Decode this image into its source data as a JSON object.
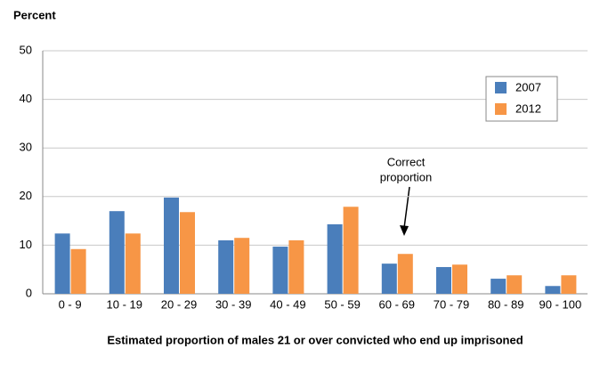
{
  "chart_data": {
    "type": "bar",
    "y_axis_label": "Percent",
    "x_axis_label": "Estimated proportion of males 21 or over convicted who end up imprisoned",
    "categories": [
      "0 - 9",
      "10 - 19",
      "20 - 29",
      "30 - 39",
      "40 - 49",
      "50 - 59",
      "60 - 69",
      "70 - 79",
      "80 - 89",
      "90 - 100"
    ],
    "series": [
      {
        "name": "2007",
        "color": "#4a7ebb",
        "values": [
          12.4,
          17.0,
          19.8,
          11.0,
          9.7,
          14.3,
          6.2,
          5.5,
          3.1,
          1.6
        ]
      },
      {
        "name": "2012",
        "color": "#f79646",
        "values": [
          9.2,
          12.4,
          16.8,
          11.5,
          11.0,
          17.9,
          8.2,
          6.0,
          3.8,
          3.8
        ]
      }
    ],
    "annotation_lines": [
      "Correct",
      "proportion"
    ],
    "ylim": [
      0,
      50
    ],
    "yticks": [
      0,
      10,
      20,
      30,
      40,
      50
    ],
    "grid": true,
    "legend": "upper right"
  }
}
